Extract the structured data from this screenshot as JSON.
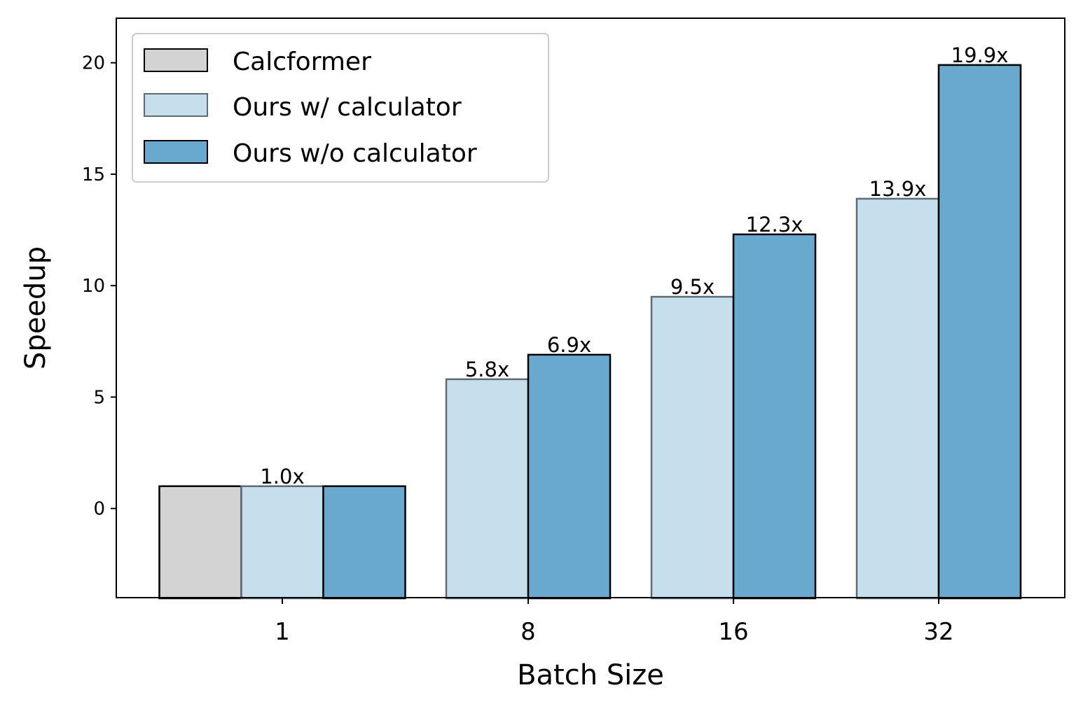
{
  "chart_data": {
    "type": "bar",
    "title": "",
    "xlabel": "Batch Size",
    "ylabel": "Speedup",
    "ylim": [
      -4,
      22
    ],
    "yticks": [
      0,
      5,
      10,
      15,
      20
    ],
    "grid": false,
    "legend_position": "top-left",
    "categories": [
      "1",
      "8",
      "16",
      "32"
    ],
    "series": [
      {
        "name": "Calcformer",
        "values": [
          1.0,
          null,
          null,
          null
        ],
        "labels": [
          null,
          null,
          null,
          null
        ],
        "fill": "#d3d3d3",
        "edge": "#000000"
      },
      {
        "name": "Ours w/ calculator",
        "values": [
          1.0,
          5.8,
          9.5,
          13.9
        ],
        "labels": [
          "1.0x",
          "5.8x",
          "9.5x",
          "13.9x"
        ],
        "fill": "#c6dfec",
        "edge": "#5f6b72"
      },
      {
        "name": "Ours w/o calculator",
        "values": [
          1.0,
          6.9,
          12.3,
          19.9
        ],
        "labels": [
          null,
          "6.9x",
          "12.3x",
          "19.9x"
        ],
        "fill": "#69a8cf",
        "edge": "#000000"
      }
    ]
  }
}
